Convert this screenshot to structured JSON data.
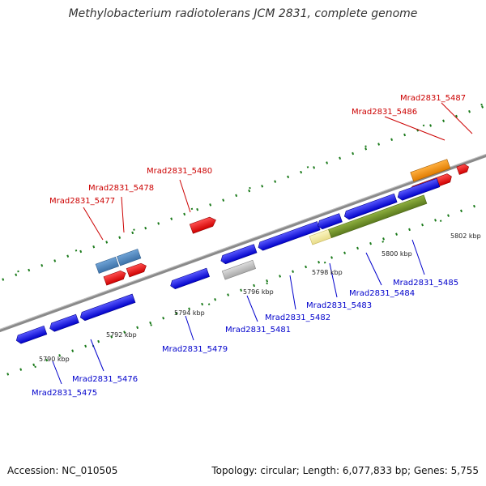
{
  "title": "Methylobacterium radiotolerans JCM 2831, complete genome",
  "footer": {
    "accession": "Accession: NC_010505",
    "summary": "Topology: circular; Length: 6,077,833 bp; Genes: 5,755"
  },
  "colors": {
    "forward_label": "#cc0000",
    "reverse_label": "#0000cc",
    "forward_gene": "#ff0000",
    "reverse_gene": "#0000ee",
    "backbone": "#808080",
    "tick_mark": "#1a7a1a"
  },
  "scale_labels": [
    "5790 kbp",
    "5792 kbp",
    "5794 kbp",
    "5796 kbp",
    "5798 kbp",
    "5800 kbp",
    "5802 kbp"
  ],
  "forward_labels": [
    "Mrad2831_5477",
    "Mrad2831_5478",
    "Mrad2831_5480",
    "Mrad2831_5486",
    "Mrad2831_5487"
  ],
  "reverse_labels": [
    "Mrad2831_5475",
    "Mrad2831_5476",
    "Mrad2831_5479",
    "Mrad2831_5481",
    "Mrad2831_5482",
    "Mrad2831_5483",
    "Mrad2831_5484",
    "Mrad2831_5485"
  ]
}
